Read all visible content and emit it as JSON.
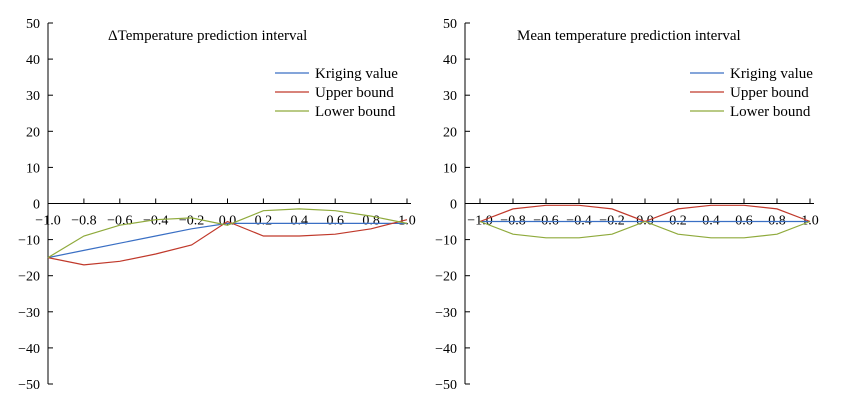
{
  "chart_data": [
    {
      "type": "line",
      "title": "ΔTemperature prediction interval",
      "xlabel": "",
      "ylabel": "",
      "ylim": [
        -50,
        50
      ],
      "xlim": [
        -1.0,
        1.0
      ],
      "y_ticks": [
        50,
        40,
        30,
        20,
        10,
        0,
        -10,
        -20,
        -30,
        -40,
        -50
      ],
      "x_ticks": [
        -1.0,
        -0.8,
        -0.6,
        -0.4,
        -0.2,
        0.0,
        0.2,
        0.4,
        0.6,
        0.8,
        1.0
      ],
      "x_tick_labels": [
        "−1.0",
        "−0.8",
        "−0.6",
        "−0.4",
        "−0.2",
        "0.0",
        "0.2",
        "0.4",
        "0.6",
        "0.8",
        "1.0"
      ],
      "y_tick_labels": [
        "50",
        "40",
        "30",
        "20",
        "10",
        "0",
        "−10",
        "−20",
        "−30",
        "−40",
        "−50"
      ],
      "legend_position": "top-right",
      "series": [
        {
          "name": "Kriging value",
          "color": "#3a6fc4",
          "x": [
            -1.0,
            -0.8,
            -0.6,
            -0.4,
            -0.2,
            0.0,
            0.2,
            0.4,
            0.6,
            0.8,
            1.0
          ],
          "y": [
            -15,
            -13,
            -11,
            -9,
            -7,
            -5.5,
            -5.5,
            -5.5,
            -5.5,
            -5.5,
            -5.5
          ]
        },
        {
          "name": "Upper bound",
          "color": "#c0392b",
          "x": [
            -1.0,
            -0.8,
            -0.6,
            -0.4,
            -0.2,
            0.0,
            0.2,
            0.4,
            0.6,
            0.8,
            1.0
          ],
          "y": [
            -15,
            -17,
            -16,
            -14,
            -11.5,
            -5,
            -9,
            -9,
            -8.5,
            -7,
            -4.5
          ]
        },
        {
          "name": "Lower bound",
          "color": "#8faa3c",
          "x": [
            -1.0,
            -0.8,
            -0.6,
            -0.4,
            -0.2,
            0.0,
            0.2,
            0.4,
            0.6,
            0.8,
            1.0
          ],
          "y": [
            -15,
            -9,
            -6,
            -4.5,
            -4,
            -6,
            -2,
            -1.5,
            -2,
            -3.5,
            -5.5
          ]
        }
      ]
    },
    {
      "type": "line",
      "title": "Mean temperature prediction interval",
      "xlabel": "",
      "ylabel": "",
      "ylim": [
        -50,
        50
      ],
      "xlim": [
        -1.0,
        1.0
      ],
      "y_ticks": [
        50,
        40,
        30,
        20,
        10,
        0,
        -10,
        -20,
        -30,
        -40,
        -50
      ],
      "x_ticks": [
        -1.0,
        -0.8,
        -0.6,
        -0.4,
        -0.2,
        0.0,
        0.2,
        0.4,
        0.6,
        0.8,
        1.0
      ],
      "x_tick_labels": [
        "−1.0",
        "−0.8",
        "−0.6",
        "−0.4",
        "−0.2",
        "0.0",
        "0.2",
        "0.4",
        "0.6",
        "0.8",
        "1.0"
      ],
      "y_tick_labels": [
        "50",
        "40",
        "30",
        "20",
        "10",
        "0",
        "−10",
        "−20",
        "−30",
        "−40",
        "−50"
      ],
      "legend_position": "top-right",
      "series": [
        {
          "name": "Kriging value",
          "color": "#3a6fc4",
          "x": [
            -1.0,
            -0.8,
            -0.6,
            -0.4,
            -0.2,
            0.0,
            0.2,
            0.4,
            0.6,
            0.8,
            1.0
          ],
          "y": [
            -5,
            -5,
            -5,
            -5,
            -5,
            -5,
            -5,
            -5,
            -5,
            -5,
            -5
          ]
        },
        {
          "name": "Upper bound",
          "color": "#c0392b",
          "x": [
            -1.0,
            -0.8,
            -0.6,
            -0.4,
            -0.2,
            0.0,
            0.2,
            0.4,
            0.6,
            0.8,
            1.0
          ],
          "y": [
            -5,
            -1.5,
            -0.5,
            -0.5,
            -1.5,
            -5,
            -1.5,
            -0.5,
            -0.5,
            -1.5,
            -5
          ]
        },
        {
          "name": "Lower bound",
          "color": "#8faa3c",
          "x": [
            -1.0,
            -0.8,
            -0.6,
            -0.4,
            -0.2,
            0.0,
            0.2,
            0.4,
            0.6,
            0.8,
            1.0
          ],
          "y": [
            -5,
            -8.5,
            -9.5,
            -9.5,
            -8.5,
            -5,
            -8.5,
            -9.5,
            -9.5,
            -8.5,
            -5
          ]
        }
      ]
    }
  ]
}
